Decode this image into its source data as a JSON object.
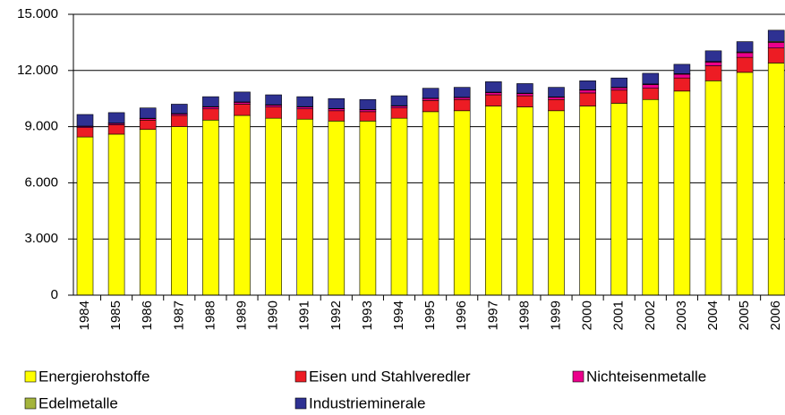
{
  "chart_data": {
    "type": "stacked_bar",
    "categories": [
      "1984",
      "1985",
      "1986",
      "1987",
      "1988",
      "1989",
      "1990",
      "1991",
      "1992",
      "1993",
      "1994",
      "1995",
      "1996",
      "1997",
      "1998",
      "1999",
      "2000",
      "2001",
      "2002",
      "2003",
      "2004",
      "2005",
      "2006"
    ],
    "series": [
      {
        "name": "Energierohstoffe",
        "color": "#ffff00",
        "values": [
          8450,
          8600,
          8850,
          9000,
          9350,
          9600,
          9450,
          9400,
          9300,
          9300,
          9450,
          9800,
          9850,
          10100,
          10050,
          9850,
          10100,
          10250,
          10450,
          10900,
          11450,
          11900,
          12400
        ]
      },
      {
        "name": "Eisen und Stahlveredler",
        "color": "#ed1c24",
        "values": [
          500,
          500,
          500,
          600,
          600,
          600,
          600,
          550,
          550,
          500,
          550,
          600,
          600,
          600,
          600,
          600,
          700,
          700,
          600,
          700,
          800,
          800,
          800
        ]
      },
      {
        "name": "Nichteisenmetalle",
        "color": "#ec008c",
        "values": [
          60,
          70,
          80,
          80,
          100,
          100,
          100,
          100,
          100,
          100,
          100,
          100,
          100,
          120,
          120,
          120,
          150,
          130,
          200,
          200,
          200,
          250,
          300
        ]
      },
      {
        "name": "Edelmetalle",
        "color": "#a4b43c",
        "values": [
          20,
          20,
          20,
          20,
          20,
          20,
          20,
          20,
          20,
          20,
          20,
          20,
          20,
          20,
          20,
          20,
          20,
          20,
          30,
          30,
          30,
          40,
          50
        ]
      },
      {
        "name": "Industrieminerale",
        "color": "#2e3192",
        "values": [
          620,
          560,
          550,
          500,
          530,
          530,
          530,
          530,
          530,
          530,
          530,
          530,
          530,
          560,
          510,
          510,
          480,
          500,
          570,
          500,
          570,
          550,
          600
        ]
      }
    ],
    "ylim": [
      0,
      15000
    ],
    "yticks": [
      0,
      {
        "value": 3000,
        "label": "3.000"
      },
      {
        "value": 6000,
        "label": "6.000"
      },
      {
        "value": 9000,
        "label": "9.000"
      },
      {
        "value": 12000,
        "label": "12.000"
      },
      {
        "value": 15000,
        "label": "15.000"
      }
    ],
    "grid": true
  }
}
